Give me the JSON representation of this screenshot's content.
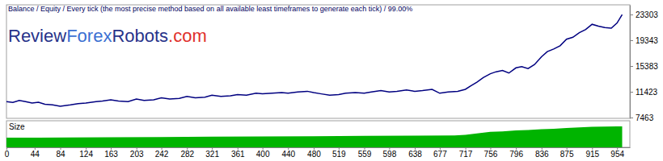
{
  "chart_data": [
    {
      "type": "line",
      "title": "Balance / Equity / Every tick (the most precise method based on all available least timeframes to generate each tick) / 99.00%",
      "annotations": [
        {
          "text": "Review",
          "color": "#27338a"
        },
        {
          "text": "Forex",
          "color": "#3a6fd2"
        },
        {
          "text": "Robots",
          "color": "#27338a"
        },
        {
          "text": ".com",
          "color": "#e0302c"
        }
      ],
      "x": [
        0,
        10,
        20,
        30,
        40,
        50,
        60,
        72,
        84,
        100,
        112,
        124,
        140,
        150,
        163,
        175,
        190,
        203,
        215,
        230,
        242,
        255,
        270,
        282,
        295,
        310,
        321,
        335,
        350,
        361,
        375,
        390,
        400,
        415,
        430,
        440,
        455,
        470,
        480,
        492,
        505,
        519,
        530,
        545,
        559,
        570,
        585,
        598,
        610,
        625,
        638,
        650,
        665,
        677,
        690,
        705,
        717,
        725,
        735,
        745,
        756,
        765,
        775,
        785,
        796,
        805,
        815,
        825,
        836,
        845,
        855,
        865,
        875,
        885,
        895,
        905,
        915,
        925,
        935,
        945,
        954,
        962
      ],
      "series": [
        {
          "name": "Balance",
          "color": "#000080",
          "values": [
            9900,
            9800,
            10100,
            9900,
            9700,
            9800,
            9500,
            9400,
            9200,
            9400,
            9600,
            9700,
            9900,
            10000,
            10200,
            10000,
            9900,
            10300,
            10100,
            10200,
            10500,
            10300,
            10400,
            10700,
            10500,
            10600,
            10900,
            10700,
            10800,
            11000,
            10900,
            11200,
            11100,
            11200,
            11300,
            11200,
            11400,
            11500,
            11300,
            11100,
            10900,
            11000,
            11200,
            11300,
            11200,
            11400,
            11600,
            11400,
            11500,
            11700,
            11500,
            11600,
            11800,
            11200,
            11400,
            11500,
            11800,
            12300,
            12900,
            13600,
            14200,
            14500,
            14700,
            14300,
            15100,
            15300,
            15000,
            15600,
            16800,
            17600,
            18000,
            18500,
            19500,
            19800,
            20500,
            21000,
            21800,
            21500,
            21300,
            21200,
            22000,
            23300
          ]
        }
      ],
      "xlim": [
        0,
        974
      ],
      "ylim": [
        7340,
        24790
      ],
      "yticks": [
        7463,
        11423,
        15383,
        19343,
        23303
      ],
      "tick_labels": "y",
      "grid": false
    },
    {
      "type": "area",
      "title": "Size",
      "x": [
        0,
        50,
        100,
        163,
        242,
        321,
        400,
        480,
        559,
        638,
        700,
        717,
        735,
        756,
        775,
        796,
        815,
        836,
        855,
        875,
        895,
        915,
        935,
        954,
        962
      ],
      "values": [
        3.6,
        3.6,
        3.7,
        3.8,
        3.9,
        4.0,
        4.1,
        4.2,
        4.3,
        4.4,
        4.5,
        4.7,
        5.2,
        5.8,
        6.0,
        6.4,
        6.5,
        6.8,
        7.0,
        7.3,
        7.5,
        7.7,
        7.8,
        7.9,
        7.9
      ],
      "color": "#00b400",
      "xlim": [
        0,
        974
      ],
      "ylim": [
        0,
        10
      ],
      "xticks": [
        0,
        44,
        84,
        124,
        163,
        203,
        242,
        282,
        321,
        361,
        400,
        440,
        480,
        519,
        559,
        598,
        638,
        677,
        717,
        756,
        796,
        836,
        875,
        915,
        954
      ],
      "tick_labels": "x"
    }
  ]
}
